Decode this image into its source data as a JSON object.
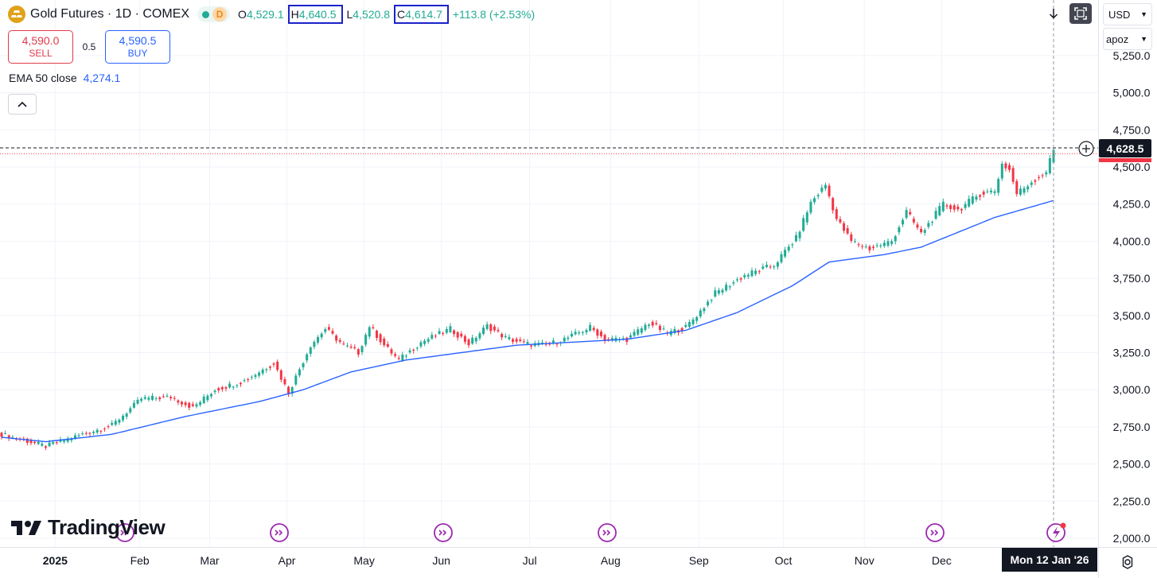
{
  "header": {
    "title": "Gold Futures · 1D · COMEX",
    "status_badge": "D",
    "ohlc": {
      "open_label": "O",
      "open": "4,529.1",
      "high_label": "H",
      "high": "4,640.5",
      "low_label": "L",
      "low": "4,520.8",
      "close_label": "C",
      "close": "4,614.7",
      "change": "+113.8 (+2.53%)"
    }
  },
  "trade": {
    "sell_price": "4,590.0",
    "sell_label": "SELL",
    "spread": "0.5",
    "buy_price": "4,590.5",
    "buy_label": "BUY"
  },
  "indicator": {
    "label": "EMA 50 close",
    "value": "4,274.1"
  },
  "toolbar": {
    "currency": "USD",
    "unit": "apoz"
  },
  "branding": {
    "logo_text": "TradingView"
  },
  "colors": {
    "up": "#22ab94",
    "down": "#f23645",
    "ema": "#2962ff",
    "current_price": "#131722",
    "price_line_red": "#f23645"
  },
  "chart_data": {
    "type": "candlestick",
    "title": "Gold Futures · 1D · COMEX",
    "ylim": [
      1960,
      5350
    ],
    "y_ticks": [
      2000,
      2250,
      2500,
      2750,
      3000,
      3250,
      3500,
      3750,
      4000,
      4250,
      4500,
      4750,
      5000,
      5250
    ],
    "y_tick_labels": [
      "2,000.0",
      "2,250.0",
      "2,500.0",
      "2,750.0",
      "3,000.0",
      "3,250.0",
      "3,500.0",
      "3,750.0",
      "4,000.0",
      "4,250.0",
      "4,500.0",
      "4,750.0",
      "5,000.0",
      "5,250.0"
    ],
    "x_labels": [
      "2025",
      "Feb",
      "Mar",
      "Apr",
      "May",
      "Jun",
      "Jul",
      "Aug",
      "Sep",
      "Oct",
      "Nov",
      "Dec"
    ],
    "crosshair_date": "Mon 12 Jan '26",
    "current_price_label": "4,628.5",
    "current_price": 4628.5,
    "bid_price": 4590.0,
    "series": [
      {
        "name": "Gold Futures",
        "anchors": [
          [
            0,
            2700
          ],
          [
            12,
            2620
          ],
          [
            22,
            2700
          ],
          [
            30,
            2760
          ],
          [
            38,
            2940
          ],
          [
            46,
            2950
          ],
          [
            52,
            2880
          ],
          [
            58,
            3000
          ],
          [
            66,
            3060
          ],
          [
            70,
            3120
          ],
          [
            74,
            3180
          ],
          [
            78,
            2980
          ],
          [
            84,
            3300
          ],
          [
            88,
            3410
          ],
          [
            93,
            3300
          ],
          [
            97,
            3250
          ],
          [
            100,
            3430
          ],
          [
            104,
            3300
          ],
          [
            108,
            3200
          ],
          [
            114,
            3320
          ],
          [
            122,
            3410
          ],
          [
            127,
            3310
          ],
          [
            132,
            3430
          ],
          [
            137,
            3350
          ],
          [
            142,
            3310
          ],
          [
            148,
            3300
          ],
          [
            154,
            3350
          ],
          [
            160,
            3420
          ],
          [
            164,
            3340
          ],
          [
            170,
            3340
          ],
          [
            176,
            3450
          ],
          [
            181,
            3380
          ],
          [
            186,
            3420
          ],
          [
            190,
            3530
          ],
          [
            194,
            3650
          ],
          [
            202,
            3770
          ],
          [
            210,
            3840
          ],
          [
            216,
            4020
          ],
          [
            220,
            4260
          ],
          [
            224,
            4380
          ],
          [
            227,
            4150
          ],
          [
            231,
            4000
          ],
          [
            236,
            3950
          ],
          [
            242,
            4000
          ],
          [
            246,
            4200
          ],
          [
            250,
            4050
          ],
          [
            256,
            4250
          ],
          [
            260,
            4210
          ],
          [
            266,
            4320
          ],
          [
            270,
            4340
          ],
          [
            272,
            4520
          ],
          [
            274,
            4480
          ],
          [
            276,
            4320
          ],
          [
            280,
            4400
          ],
          [
            284,
            4470
          ],
          [
            286,
            4614
          ]
        ],
        "last": {
          "open": 4529.1,
          "high": 4640.5,
          "low": 4520.8,
          "close": 4614.7
        }
      },
      {
        "name": "EMA 50 close",
        "anchors": [
          [
            0,
            2680
          ],
          [
            12,
            2650
          ],
          [
            30,
            2700
          ],
          [
            50,
            2820
          ],
          [
            70,
            2920
          ],
          [
            82,
            3000
          ],
          [
            95,
            3120
          ],
          [
            110,
            3200
          ],
          [
            140,
            3300
          ],
          [
            170,
            3340
          ],
          [
            186,
            3400
          ],
          [
            200,
            3520
          ],
          [
            215,
            3700
          ],
          [
            225,
            3860
          ],
          [
            240,
            3910
          ],
          [
            250,
            3960
          ],
          [
            270,
            4160
          ],
          [
            286,
            4274.1
          ]
        ]
      }
    ],
    "event_markers": 6
  }
}
